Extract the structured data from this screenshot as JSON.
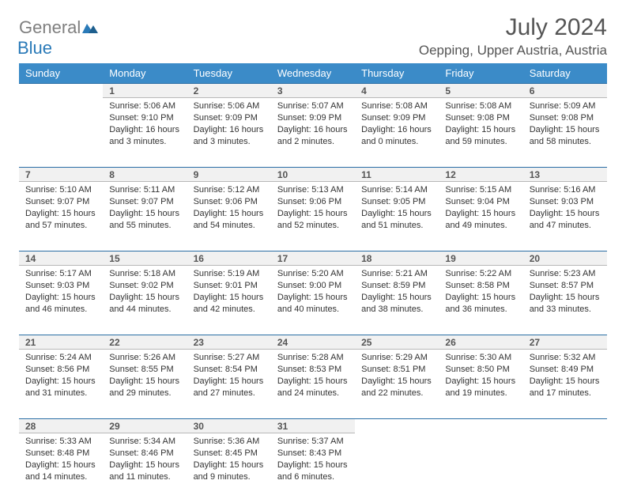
{
  "logo": {
    "general": "General",
    "blue": "Blue"
  },
  "title": "July 2024",
  "location": "Oepping, Upper Austria, Austria",
  "colors": {
    "header_bg": "#3b8bc8",
    "header_text": "#ffffff",
    "daynum_bg": "#f1f1f1",
    "border_top": "#2a6ea5",
    "border_bottom": "#b8b8b8",
    "logo_gray": "#7f7f7f",
    "logo_blue": "#2a7ab8"
  },
  "weekdays": [
    "Sunday",
    "Monday",
    "Tuesday",
    "Wednesday",
    "Thursday",
    "Friday",
    "Saturday"
  ],
  "weeks": [
    [
      null,
      {
        "n": "1",
        "sr": "Sunrise: 5:06 AM",
        "ss": "Sunset: 9:10 PM",
        "d1": "Daylight: 16 hours",
        "d2": "and 3 minutes."
      },
      {
        "n": "2",
        "sr": "Sunrise: 5:06 AM",
        "ss": "Sunset: 9:09 PM",
        "d1": "Daylight: 16 hours",
        "d2": "and 3 minutes."
      },
      {
        "n": "3",
        "sr": "Sunrise: 5:07 AM",
        "ss": "Sunset: 9:09 PM",
        "d1": "Daylight: 16 hours",
        "d2": "and 2 minutes."
      },
      {
        "n": "4",
        "sr": "Sunrise: 5:08 AM",
        "ss": "Sunset: 9:09 PM",
        "d1": "Daylight: 16 hours",
        "d2": "and 0 minutes."
      },
      {
        "n": "5",
        "sr": "Sunrise: 5:08 AM",
        "ss": "Sunset: 9:08 PM",
        "d1": "Daylight: 15 hours",
        "d2": "and 59 minutes."
      },
      {
        "n": "6",
        "sr": "Sunrise: 5:09 AM",
        "ss": "Sunset: 9:08 PM",
        "d1": "Daylight: 15 hours",
        "d2": "and 58 minutes."
      }
    ],
    [
      {
        "n": "7",
        "sr": "Sunrise: 5:10 AM",
        "ss": "Sunset: 9:07 PM",
        "d1": "Daylight: 15 hours",
        "d2": "and 57 minutes."
      },
      {
        "n": "8",
        "sr": "Sunrise: 5:11 AM",
        "ss": "Sunset: 9:07 PM",
        "d1": "Daylight: 15 hours",
        "d2": "and 55 minutes."
      },
      {
        "n": "9",
        "sr": "Sunrise: 5:12 AM",
        "ss": "Sunset: 9:06 PM",
        "d1": "Daylight: 15 hours",
        "d2": "and 54 minutes."
      },
      {
        "n": "10",
        "sr": "Sunrise: 5:13 AM",
        "ss": "Sunset: 9:06 PM",
        "d1": "Daylight: 15 hours",
        "d2": "and 52 minutes."
      },
      {
        "n": "11",
        "sr": "Sunrise: 5:14 AM",
        "ss": "Sunset: 9:05 PM",
        "d1": "Daylight: 15 hours",
        "d2": "and 51 minutes."
      },
      {
        "n": "12",
        "sr": "Sunrise: 5:15 AM",
        "ss": "Sunset: 9:04 PM",
        "d1": "Daylight: 15 hours",
        "d2": "and 49 minutes."
      },
      {
        "n": "13",
        "sr": "Sunrise: 5:16 AM",
        "ss": "Sunset: 9:03 PM",
        "d1": "Daylight: 15 hours",
        "d2": "and 47 minutes."
      }
    ],
    [
      {
        "n": "14",
        "sr": "Sunrise: 5:17 AM",
        "ss": "Sunset: 9:03 PM",
        "d1": "Daylight: 15 hours",
        "d2": "and 46 minutes."
      },
      {
        "n": "15",
        "sr": "Sunrise: 5:18 AM",
        "ss": "Sunset: 9:02 PM",
        "d1": "Daylight: 15 hours",
        "d2": "and 44 minutes."
      },
      {
        "n": "16",
        "sr": "Sunrise: 5:19 AM",
        "ss": "Sunset: 9:01 PM",
        "d1": "Daylight: 15 hours",
        "d2": "and 42 minutes."
      },
      {
        "n": "17",
        "sr": "Sunrise: 5:20 AM",
        "ss": "Sunset: 9:00 PM",
        "d1": "Daylight: 15 hours",
        "d2": "and 40 minutes."
      },
      {
        "n": "18",
        "sr": "Sunrise: 5:21 AM",
        "ss": "Sunset: 8:59 PM",
        "d1": "Daylight: 15 hours",
        "d2": "and 38 minutes."
      },
      {
        "n": "19",
        "sr": "Sunrise: 5:22 AM",
        "ss": "Sunset: 8:58 PM",
        "d1": "Daylight: 15 hours",
        "d2": "and 36 minutes."
      },
      {
        "n": "20",
        "sr": "Sunrise: 5:23 AM",
        "ss": "Sunset: 8:57 PM",
        "d1": "Daylight: 15 hours",
        "d2": "and 33 minutes."
      }
    ],
    [
      {
        "n": "21",
        "sr": "Sunrise: 5:24 AM",
        "ss": "Sunset: 8:56 PM",
        "d1": "Daylight: 15 hours",
        "d2": "and 31 minutes."
      },
      {
        "n": "22",
        "sr": "Sunrise: 5:26 AM",
        "ss": "Sunset: 8:55 PM",
        "d1": "Daylight: 15 hours",
        "d2": "and 29 minutes."
      },
      {
        "n": "23",
        "sr": "Sunrise: 5:27 AM",
        "ss": "Sunset: 8:54 PM",
        "d1": "Daylight: 15 hours",
        "d2": "and 27 minutes."
      },
      {
        "n": "24",
        "sr": "Sunrise: 5:28 AM",
        "ss": "Sunset: 8:53 PM",
        "d1": "Daylight: 15 hours",
        "d2": "and 24 minutes."
      },
      {
        "n": "25",
        "sr": "Sunrise: 5:29 AM",
        "ss": "Sunset: 8:51 PM",
        "d1": "Daylight: 15 hours",
        "d2": "and 22 minutes."
      },
      {
        "n": "26",
        "sr": "Sunrise: 5:30 AM",
        "ss": "Sunset: 8:50 PM",
        "d1": "Daylight: 15 hours",
        "d2": "and 19 minutes."
      },
      {
        "n": "27",
        "sr": "Sunrise: 5:32 AM",
        "ss": "Sunset: 8:49 PM",
        "d1": "Daylight: 15 hours",
        "d2": "and 17 minutes."
      }
    ],
    [
      {
        "n": "28",
        "sr": "Sunrise: 5:33 AM",
        "ss": "Sunset: 8:48 PM",
        "d1": "Daylight: 15 hours",
        "d2": "and 14 minutes."
      },
      {
        "n": "29",
        "sr": "Sunrise: 5:34 AM",
        "ss": "Sunset: 8:46 PM",
        "d1": "Daylight: 15 hours",
        "d2": "and 11 minutes."
      },
      {
        "n": "30",
        "sr": "Sunrise: 5:36 AM",
        "ss": "Sunset: 8:45 PM",
        "d1": "Daylight: 15 hours",
        "d2": "and 9 minutes."
      },
      {
        "n": "31",
        "sr": "Sunrise: 5:37 AM",
        "ss": "Sunset: 8:43 PM",
        "d1": "Daylight: 15 hours",
        "d2": "and 6 minutes."
      },
      null,
      null,
      null
    ]
  ]
}
